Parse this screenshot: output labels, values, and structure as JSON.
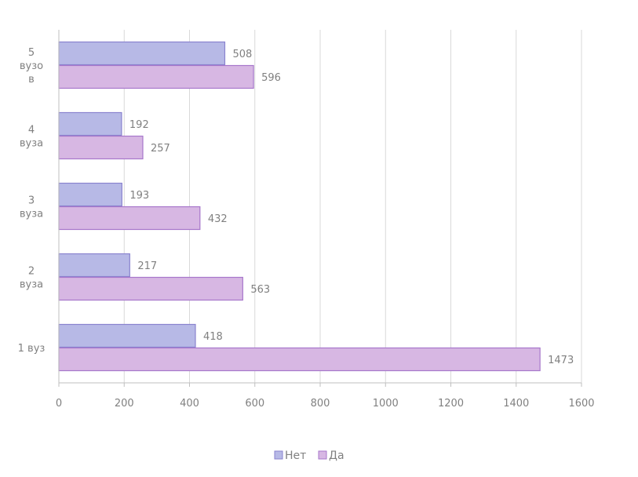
{
  "chart_data": {
    "type": "bar",
    "orientation": "horizontal",
    "categories": [
      [
        "5",
        "вузо",
        "в"
      ],
      [
        "4",
        "вуза"
      ],
      [
        "3",
        "вуза"
      ],
      [
        "2",
        "вуза"
      ],
      [
        "1 вуз"
      ]
    ],
    "series": [
      {
        "name": "Нет",
        "values": [
          508,
          192,
          193,
          217,
          418
        ],
        "color": "#b7b9e6",
        "stroke": "#8a83cf"
      },
      {
        "name": "Да",
        "values": [
          596,
          257,
          432,
          563,
          1473
        ],
        "color": "#d7b7e3",
        "stroke": "#a777cb"
      }
    ],
    "xlim": [
      0,
      1600
    ],
    "xticks": [
      0,
      200,
      400,
      600,
      800,
      1000,
      1200,
      1400,
      1600
    ],
    "grid": true,
    "legend_position": "bottom",
    "title": "",
    "xlabel": "",
    "ylabel": ""
  }
}
